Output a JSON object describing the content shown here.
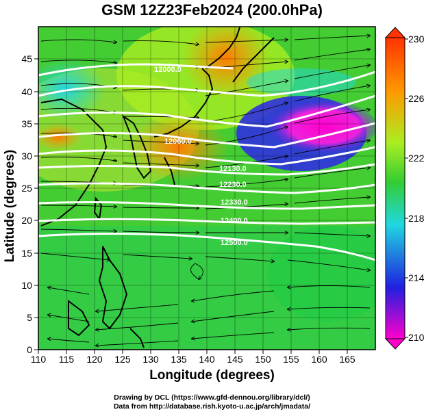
{
  "title": "GSM 12Z23Feb2024 (200.0hPa)",
  "xlabel": "Longitude (degrees)",
  "ylabel": "Latitude  (degrees)",
  "credit_line1": "Drawing by DCL (https://www.gfd-dennou.org/library/dcl/)",
  "credit_line2": "Data from http://database.rish.kyoto-u.ac.jp/arch/jmadata/",
  "map": {
    "lon_range": [
      110,
      170
    ],
    "lat_range": [
      0,
      50
    ],
    "lon_ticks": [
      "110",
      "115",
      "120",
      "125",
      "130",
      "135",
      "140",
      "145",
      "150",
      "155",
      "160",
      "165"
    ],
    "lat_ticks": [
      "0",
      "5",
      "10",
      "15",
      "20",
      "25",
      "30",
      "35",
      "40",
      "45"
    ],
    "colorbar": {
      "labels": [
        "230",
        "226",
        "222",
        "218",
        "214",
        "210"
      ],
      "range": [
        210,
        230
      ]
    },
    "contour_labels": [
      "12000.0",
      "12060.0",
      "12130.0",
      "12230.0",
      "12330.0",
      "12400.0",
      "12500.0"
    ],
    "colors": {
      "magenta": "#ff00cc",
      "blue": "#2020e0",
      "cyan": "#20d8e0",
      "green": "#33cc33",
      "lime": "#aaee22",
      "orange": "#ff9900",
      "red": "#ff3300"
    }
  }
}
